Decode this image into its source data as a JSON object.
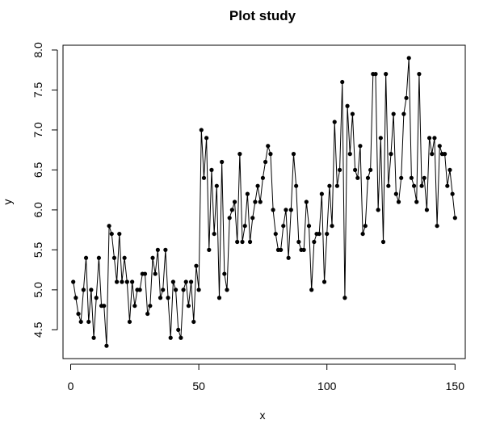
{
  "chart_data": {
    "type": "line",
    "title": "Plot study",
    "xlabel": "x",
    "ylabel": "y",
    "xlim": [
      -3,
      154
    ],
    "ylim": [
      4.14,
      8.06
    ],
    "x_ticks": [
      0,
      50,
      100,
      150
    ],
    "y_ticks": [
      4.5,
      5.0,
      5.5,
      6.0,
      6.5,
      7.0,
      7.5,
      8.0
    ],
    "x_tick_labels": [
      "0",
      "50",
      "100",
      "150"
    ],
    "y_tick_labels": [
      "4.5",
      "5.0",
      "5.5",
      "6.0",
      "6.5",
      "7.0",
      "7.5",
      "8.0"
    ],
    "grid": false,
    "legend": "none",
    "marker": "filled-circle",
    "line_color": "#000000",
    "x": [
      1,
      2,
      3,
      4,
      5,
      6,
      7,
      8,
      9,
      10,
      11,
      12,
      13,
      14,
      15,
      16,
      17,
      18,
      19,
      20,
      21,
      22,
      23,
      24,
      25,
      26,
      27,
      28,
      29,
      30,
      31,
      32,
      33,
      34,
      35,
      36,
      37,
      38,
      39,
      40,
      41,
      42,
      43,
      44,
      45,
      46,
      47,
      48,
      49,
      50,
      51,
      52,
      53,
      54,
      55,
      56,
      57,
      58,
      59,
      60,
      61,
      62,
      63,
      64,
      65,
      66,
      67,
      68,
      69,
      70,
      71,
      72,
      73,
      74,
      75,
      76,
      77,
      78,
      79,
      80,
      81,
      82,
      83,
      84,
      85,
      86,
      87,
      88,
      89,
      90,
      91,
      92,
      93,
      94,
      95,
      96,
      97,
      98,
      99,
      100,
      101,
      102,
      103,
      104,
      105,
      106,
      107,
      108,
      109,
      110,
      111,
      112,
      113,
      114,
      115,
      116,
      117,
      118,
      119,
      120,
      121,
      122,
      123,
      124,
      125,
      126,
      127,
      128,
      129,
      130,
      131,
      132,
      133,
      134,
      135,
      136,
      137,
      138,
      139,
      140,
      141,
      142,
      143,
      144,
      145,
      146,
      147,
      148,
      149,
      150
    ],
    "y": [
      5.1,
      4.9,
      4.7,
      4.6,
      5.0,
      5.4,
      4.6,
      5.0,
      4.4,
      4.9,
      5.4,
      4.8,
      4.8,
      4.3,
      5.8,
      5.7,
      5.4,
      5.1,
      5.7,
      5.1,
      5.4,
      5.1,
      4.6,
      5.1,
      4.8,
      5.0,
      5.0,
      5.2,
      5.2,
      4.7,
      4.8,
      5.4,
      5.2,
      5.5,
      4.9,
      5.0,
      5.5,
      4.9,
      4.4,
      5.1,
      5.0,
      4.5,
      4.4,
      5.0,
      5.1,
      4.8,
      5.1,
      4.6,
      5.3,
      5.0,
      7.0,
      6.4,
      6.9,
      5.5,
      6.5,
      5.7,
      6.3,
      4.9,
      6.6,
      5.2,
      5.0,
      5.9,
      6.0,
      6.1,
      5.6,
      6.7,
      5.6,
      5.8,
      6.2,
      5.6,
      5.9,
      6.1,
      6.3,
      6.1,
      6.4,
      6.6,
      6.8,
      6.7,
      6.0,
      5.7,
      5.5,
      5.5,
      5.8,
      6.0,
      5.4,
      6.0,
      6.7,
      6.3,
      5.6,
      5.5,
      5.5,
      6.1,
      5.8,
      5.0,
      5.6,
      5.7,
      5.7,
      6.2,
      5.1,
      5.7,
      6.3,
      5.8,
      7.1,
      6.3,
      6.5,
      7.6,
      4.9,
      7.3,
      6.7,
      7.2,
      6.5,
      6.4,
      6.8,
      5.7,
      5.8,
      6.4,
      6.5,
      7.7,
      7.7,
      6.0,
      6.9,
      5.6,
      7.7,
      6.3,
      6.7,
      7.2,
      6.2,
      6.1,
      6.4,
      7.2,
      7.4,
      7.9,
      6.4,
      6.3,
      6.1,
      7.7,
      6.3,
      6.4,
      6.0,
      6.9,
      6.7,
      6.9,
      5.8,
      6.8,
      6.7,
      6.7,
      6.3,
      6.5,
      6.2,
      5.9
    ]
  }
}
